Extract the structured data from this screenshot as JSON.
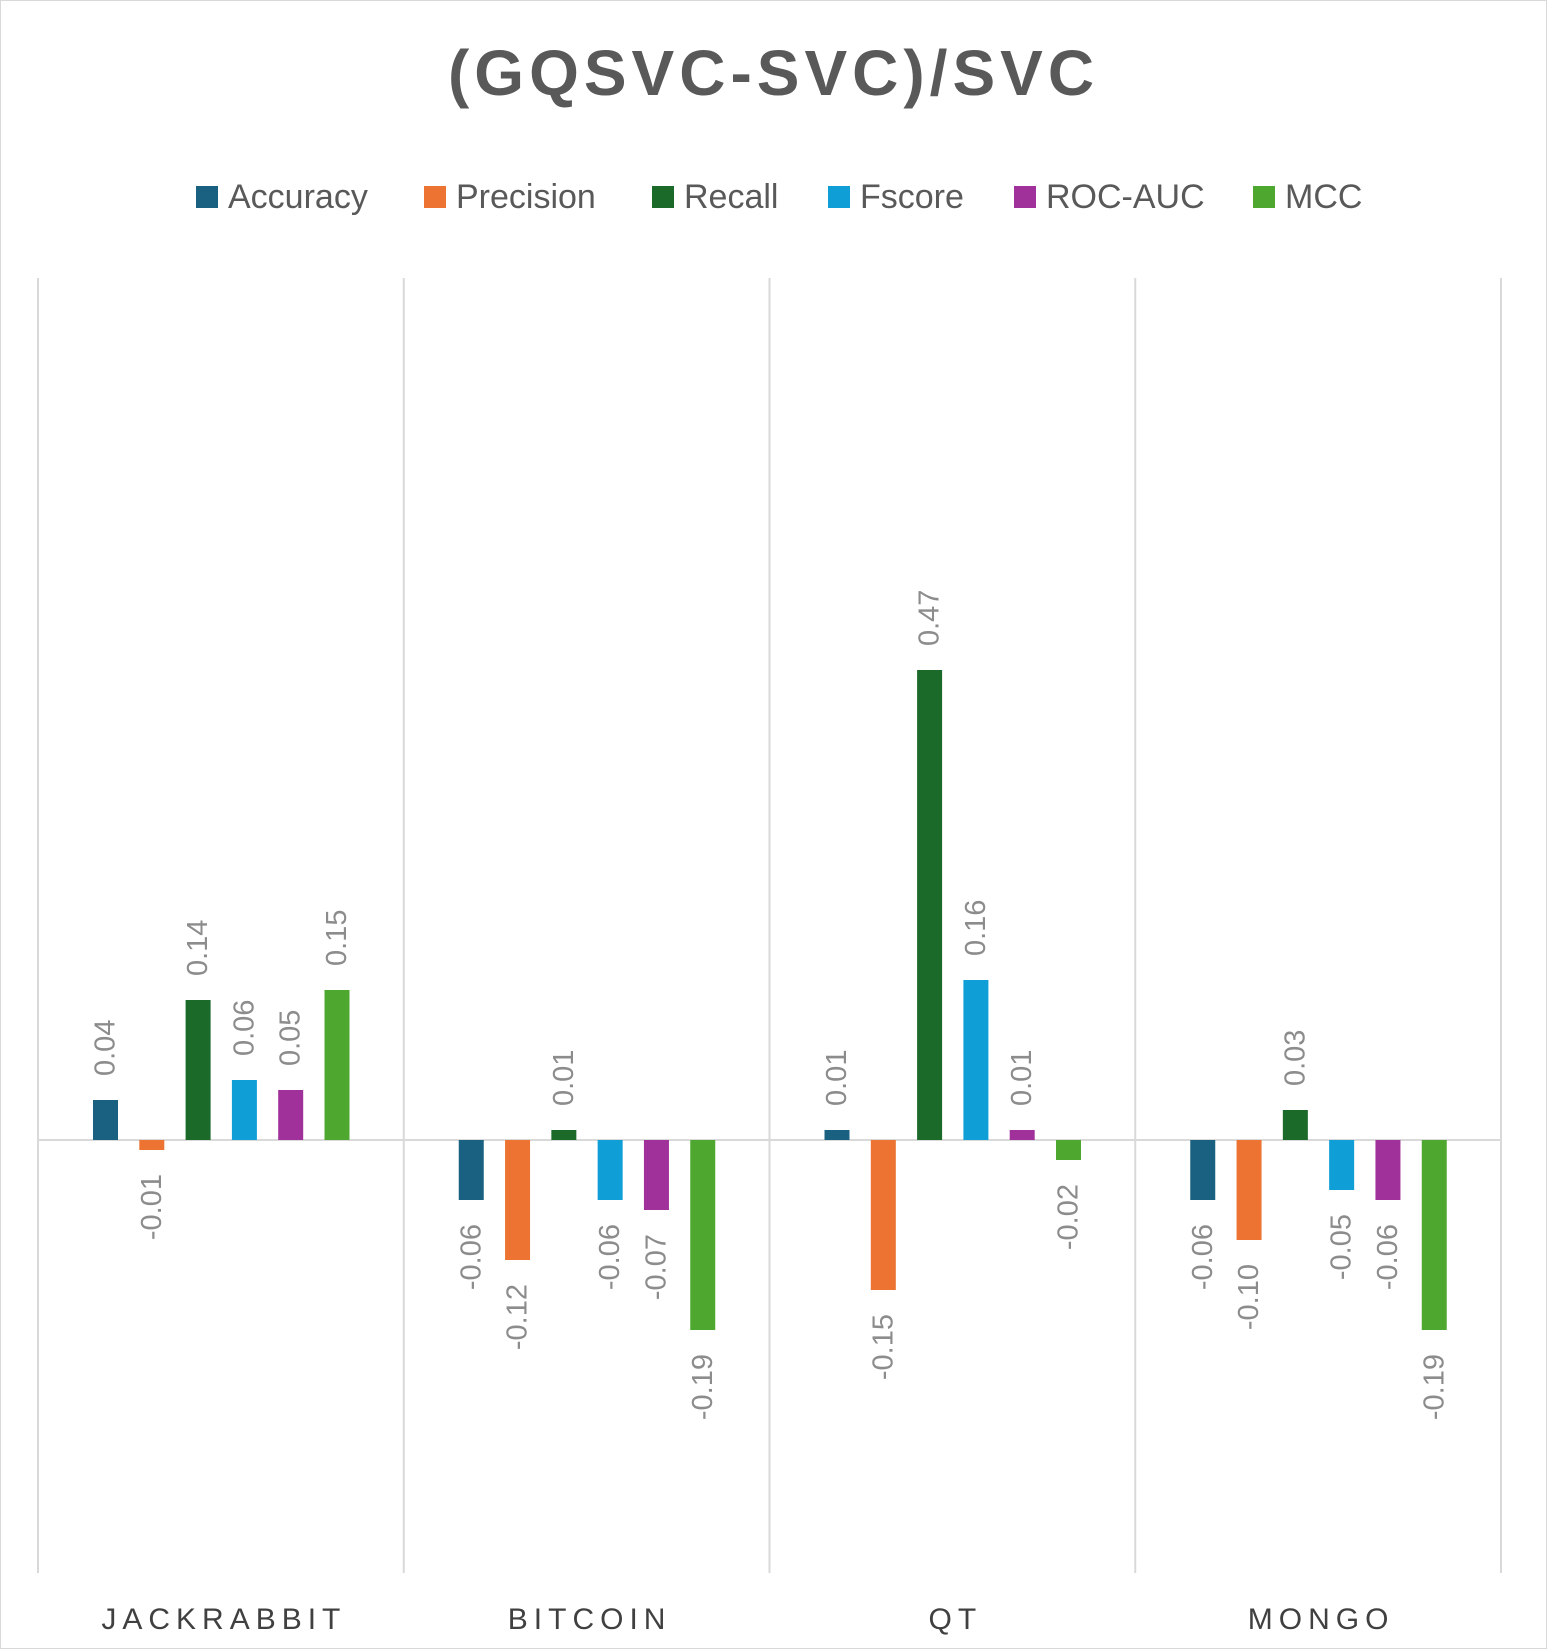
{
  "chart_data": {
    "type": "bar",
    "title": "(GQSVC-SVC)/SVC",
    "xlabel": "",
    "ylabel": "",
    "categories": [
      "JACKRABBIT",
      "BITCOIN",
      "QT",
      "MONGO"
    ],
    "series": [
      {
        "name": "Accuracy",
        "color": "#1a6080",
        "values": [
          0.04,
          -0.06,
          0.01,
          -0.06
        ],
        "labels": [
          "0.04",
          "-0.06",
          "0.01",
          "-0.06"
        ]
      },
      {
        "name": "Precision",
        "color": "#ed7332",
        "values": [
          -0.01,
          -0.12,
          -0.15,
          -0.1
        ],
        "labels": [
          "-0.01",
          "-0.12",
          "-0.15",
          "-0.10"
        ]
      },
      {
        "name": "Recall",
        "color": "#1b6a2a",
        "values": [
          0.14,
          0.01,
          0.47,
          0.03
        ],
        "labels": [
          "0.14",
          "0.01",
          "0.47",
          "0.03"
        ]
      },
      {
        "name": "Fscore",
        "color": "#0f9ed6",
        "values": [
          0.06,
          -0.06,
          0.16,
          -0.05
        ],
        "labels": [
          "0.06",
          "-0.06",
          "0.16",
          "-0.05"
        ]
      },
      {
        "name": "ROC-AUC",
        "color": "#a0309a",
        "values": [
          0.05,
          -0.07,
          0.01,
          -0.06
        ],
        "labels": [
          "0.05",
          "-0.07",
          "0.01",
          "-0.06"
        ]
      },
      {
        "name": "MCC",
        "color": "#4ea72e",
        "values": [
          0.15,
          -0.19,
          -0.02,
          -0.19
        ],
        "labels": [
          "0.15",
          "-0.19",
          "-0.02",
          "-0.19"
        ]
      }
    ],
    "ylim": [
      -0.3,
      0.6
    ],
    "grid": false,
    "legend_position": "top"
  }
}
